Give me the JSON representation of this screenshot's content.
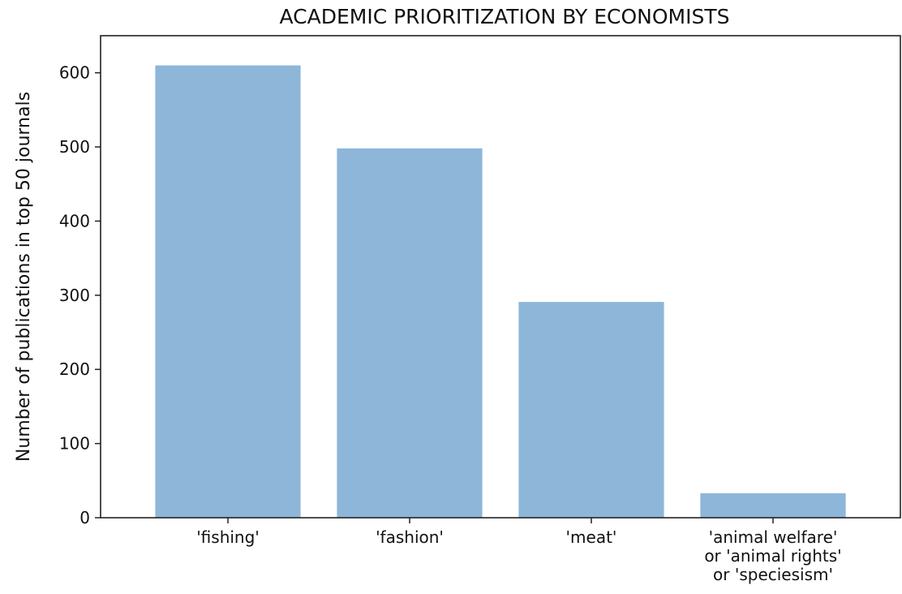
{
  "chart_data": {
    "type": "bar",
    "title": "ACADEMIC PRIORITIZATION BY ECONOMISTS",
    "xlabel": "",
    "ylabel": "Number of publications in top 50 journals",
    "categories": [
      [
        "'fishing'"
      ],
      [
        "'fashion'"
      ],
      [
        "'meat'"
      ],
      [
        "'animal welfare'",
        "or 'animal rights'",
        "or 'speciesism'"
      ]
    ],
    "values": [
      610,
      498,
      291,
      33
    ],
    "ylim": [
      0,
      650
    ],
    "yticks": [
      0,
      100,
      200,
      300,
      400,
      500,
      600
    ],
    "grid": false,
    "bar_color": "#8db6d9",
    "axis_color": "#222222"
  }
}
